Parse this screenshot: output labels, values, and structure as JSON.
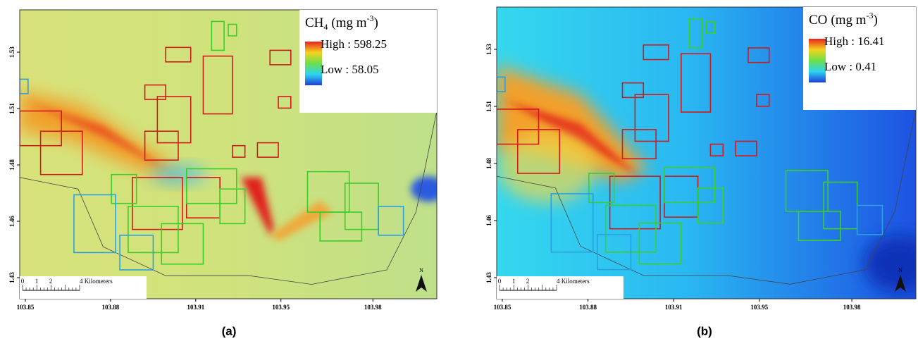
{
  "panels": [
    {
      "title": {
        "gas": "CH",
        "sub": "4",
        "unit": "(mg m",
        "sup": "-3",
        "close": ")"
      },
      "high": "High : 598.25",
      "low": "Low : 58.05",
      "caption": "(a)"
    },
    {
      "title": {
        "gas": "CO",
        "sub": "",
        "unit": "(mg m",
        "sup": "-3",
        "close": ")"
      },
      "high": "High : 16.41",
      "low": "Low : 0.41",
      "caption": "(b)"
    }
  ],
  "x_ticks": [
    "103.85",
    "103.88",
    "103.91",
    "103.95",
    "103.98"
  ],
  "y_ticks": [
    "1.53",
    "1.51",
    "1.48",
    "1.46",
    "1.43"
  ],
  "scale_bar": {
    "labels": [
      "0",
      "1",
      "2",
      "4 Kilometers"
    ]
  },
  "north": "N"
}
